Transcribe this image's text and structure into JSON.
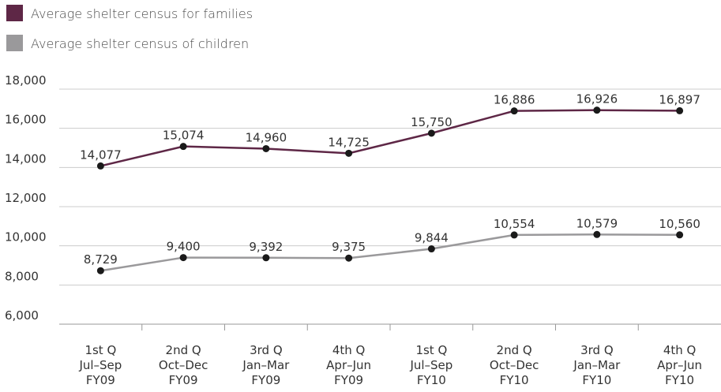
{
  "chart_data": {
    "type": "line",
    "categories": [
      [
        "1st Q",
        "Jul–Sep",
        "FY09"
      ],
      [
        "2nd Q",
        "Oct–Dec",
        "FY09"
      ],
      [
        "3rd Q",
        "Jan–Mar",
        "FY09"
      ],
      [
        "4th Q",
        "Apr–Jun",
        "FY09"
      ],
      [
        "1st Q",
        "Jul–Sep",
        "FY10"
      ],
      [
        "2nd Q",
        "Oct–Dec",
        "FY10"
      ],
      [
        "3rd Q",
        "Jan–Mar",
        "FY10"
      ],
      [
        "4th Q",
        "Apr–Jun",
        "FY10"
      ]
    ],
    "series": [
      {
        "name": "Average shelter census for families",
        "color": "#5e2746",
        "values": [
          14077,
          15074,
          14960,
          14725,
          15750,
          16886,
          16926,
          16897
        ],
        "labels": [
          "14,077",
          "15,074",
          "14,960",
          "14,725",
          "15,750",
          "16,886",
          "16,926",
          "16,897"
        ]
      },
      {
        "name": "Average shelter census of children",
        "color": "#9a999b",
        "values": [
          8729,
          9400,
          9392,
          9375,
          9844,
          10554,
          10579,
          10560
        ],
        "labels": [
          "8,729",
          "9,400",
          "9,392",
          "9,375",
          "9,844",
          "10,554",
          "10,579",
          "10,560"
        ]
      }
    ],
    "ylim": [
      6000,
      18000
    ],
    "yticks": [
      6000,
      8000,
      10000,
      12000,
      14000,
      16000,
      18000
    ],
    "ytick_labels": [
      "6,000",
      "8,000",
      "10,000",
      "12,000",
      "14,000",
      "16,000",
      "18,000"
    ],
    "grid": true,
    "legend": "top-left",
    "marker_color": "#1a1a1a",
    "title": "",
    "xlabel": "",
    "ylabel": ""
  }
}
